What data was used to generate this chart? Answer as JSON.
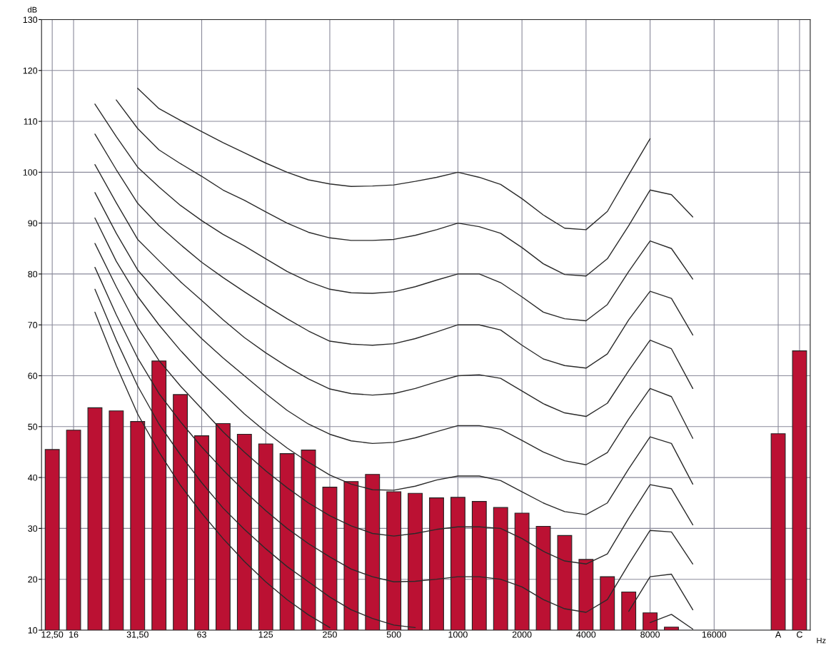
{
  "chart_data": {
    "type": "bar",
    "xlabel": "Hz",
    "ylabel": "dB",
    "categories": [
      "12,50",
      "16",
      null,
      null,
      "31,50",
      null,
      null,
      "63",
      null,
      null,
      "125",
      null,
      null,
      "250",
      null,
      null,
      "500",
      null,
      null,
      "1000",
      null,
      null,
      "2000",
      null,
      null,
      "4000",
      null,
      null,
      "8000",
      null,
      null,
      "16000",
      null,
      null,
      "A",
      "C"
    ],
    "ylim": [
      10,
      130
    ],
    "yticks": [
      10,
      20,
      30,
      40,
      50,
      60,
      70,
      80,
      90,
      100,
      110,
      120,
      130
    ],
    "grid": true,
    "series": [
      {
        "color": "#bb1133",
        "values": [
          45.5,
          49.3,
          53.7,
          53.1,
          51,
          62.9,
          56.3,
          48.2,
          50.6,
          48.5,
          46.6,
          44.7,
          45.4,
          38.1,
          39.2,
          40.6,
          37.2,
          36.9,
          36,
          36.1,
          35.3,
          34.1,
          33,
          30.4,
          28.6,
          23.9,
          20.5,
          17.5,
          13.4,
          10.6,
          null,
          null,
          null,
          null,
          48.6,
          64.9
        ]
      },
      {
        "type": "line",
        "color": "#2a2a2a",
        "values": [
          null,
          null,
          null,
          null,
          116.5,
          112.5,
          110.2,
          108,
          105.8,
          103.8,
          101.8,
          100,
          98.5,
          97.7,
          97.2,
          97.3,
          97.5,
          98.2,
          99,
          100,
          99,
          97.6,
          94.8,
          91.6,
          89,
          88.7,
          92.3,
          99.5,
          106.6,
          null,
          null,
          null,
          null,
          null,
          null,
          null
        ]
      },
      {
        "type": "line",
        "color": "#2a2a2a",
        "values": [
          null,
          null,
          null,
          114.2,
          108.6,
          104.4,
          101.7,
          99.2,
          96.5,
          94.5,
          92.2,
          90,
          88.2,
          87.1,
          86.6,
          86.6,
          86.8,
          87.6,
          88.7,
          90,
          89.3,
          88,
          85.2,
          82,
          79.9,
          79.6,
          83,
          89.5,
          96.5,
          95.6,
          91.2,
          null,
          null,
          null,
          null,
          null
        ]
      },
      {
        "type": "line",
        "color": "#2a2a2a",
        "values": [
          null,
          null,
          113.4,
          107,
          101,
          97.1,
          93.5,
          90.5,
          87.8,
          85.5,
          83,
          80.5,
          78.5,
          77,
          76.3,
          76.2,
          76.5,
          77.5,
          78.8,
          80,
          80,
          78.3,
          75.5,
          72.5,
          71.2,
          70.8,
          74,
          80.5,
          86.5,
          85,
          79,
          null,
          null,
          null,
          null,
          null
        ]
      },
      {
        "type": "line",
        "color": "#2a2a2a",
        "values": [
          null,
          null,
          107.5,
          100.5,
          93.9,
          89.5,
          85.8,
          82.3,
          79.3,
          76.5,
          73.8,
          71.2,
          68.8,
          66.8,
          66.2,
          66,
          66.3,
          67.3,
          68.6,
          70,
          70,
          69,
          66,
          63.3,
          62,
          61.5,
          64.3,
          71,
          76.6,
          75.2,
          68,
          null,
          null,
          null,
          null,
          null
        ]
      },
      {
        "type": "line",
        "color": "#2a2a2a",
        "values": [
          null,
          null,
          101.5,
          94,
          86.8,
          82.6,
          78.5,
          74.8,
          71,
          67.5,
          64.5,
          61.8,
          59.4,
          57.4,
          56.5,
          56.2,
          56.5,
          57.5,
          58.8,
          60,
          60.2,
          59.5,
          57,
          54.5,
          52.7,
          52,
          54.6,
          61,
          67,
          65.3,
          57.5,
          null,
          null,
          null,
          null,
          null
        ]
      },
      {
        "type": "line",
        "color": "#2a2a2a",
        "values": [
          null,
          null,
          96,
          88,
          80.8,
          76,
          71.5,
          67.3,
          63.5,
          60,
          56.5,
          53.2,
          50.5,
          48.5,
          47.2,
          46.7,
          46.9,
          47.8,
          49,
          50.2,
          50.2,
          49.5,
          47.3,
          45,
          43.3,
          42.5,
          44.9,
          51.5,
          57.5,
          55.9,
          47.7,
          null,
          null,
          null,
          null,
          null
        ]
      },
      {
        "type": "line",
        "color": "#2a2a2a",
        "values": [
          null,
          null,
          91,
          82.5,
          75.6,
          70,
          65,
          60.5,
          56.5,
          52.5,
          49,
          45.8,
          43,
          40.5,
          38.7,
          37.6,
          37.5,
          38.3,
          39.5,
          40.3,
          40.3,
          39.4,
          37.2,
          35,
          33.3,
          32.7,
          35,
          41.7,
          48,
          46.7,
          38.7,
          null,
          null,
          null,
          null,
          null
        ]
      },
      {
        "type": "line",
        "color": "#2a2a2a",
        "values": [
          null,
          null,
          86,
          77.5,
          69.5,
          63,
          58,
          53.5,
          49,
          45,
          41.3,
          38,
          35,
          32.5,
          30.5,
          29,
          28.5,
          29,
          29.8,
          30.3,
          30.3,
          30,
          28,
          25.5,
          23.6,
          23,
          25,
          32,
          38.6,
          37.8,
          30.7,
          null,
          null,
          null,
          null,
          null
        ]
      },
      {
        "type": "line",
        "color": "#2a2a2a",
        "values": [
          null,
          null,
          81.3,
          72,
          63.5,
          56.5,
          51,
          46,
          41.5,
          37.3,
          33.5,
          30,
          27,
          24.4,
          22,
          20.5,
          19.5,
          19.6,
          20,
          20.5,
          20.5,
          20,
          18.5,
          16,
          14.2,
          13.5,
          16,
          23,
          29.6,
          29.3,
          23,
          null,
          null,
          null,
          null,
          null
        ]
      },
      {
        "type": "line",
        "color": "#2a2a2a",
        "values": [
          null,
          null,
          77,
          67,
          58,
          50.5,
          44.5,
          39,
          34,
          29.8,
          26,
          22.5,
          19.5,
          16.5,
          14,
          12.3,
          11,
          10.5,
          null,
          null,
          null,
          null,
          null,
          null,
          null,
          null,
          null,
          13.7,
          20.5,
          21,
          14,
          null,
          null,
          null,
          null,
          null
        ]
      },
      {
        "type": "line",
        "color": "#2a2a2a",
        "values": [
          null,
          null,
          72.5,
          62,
          52.5,
          45,
          38.5,
          33,
          28,
          23.5,
          19.5,
          16,
          13,
          10.5,
          null,
          null,
          null,
          null,
          null,
          null,
          null,
          null,
          null,
          null,
          null,
          null,
          null,
          null,
          11.5,
          13.1,
          10.2,
          null,
          null,
          null,
          null,
          null
        ]
      }
    ]
  }
}
